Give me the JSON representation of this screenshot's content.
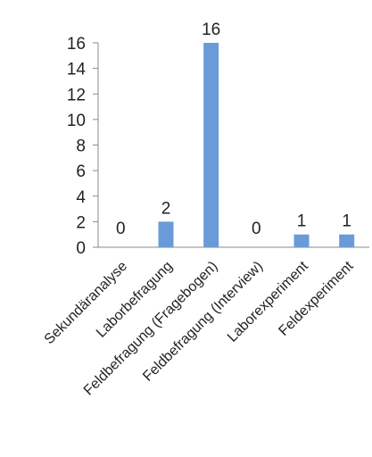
{
  "chart_data": {
    "type": "bar",
    "categories": [
      "Sekundäranalyse",
      "Laborbefragung",
      "Feldbefragung (Fragebogen)",
      "Feldbefragung (Interview)",
      "Laborexperiment",
      "Feldexperiment"
    ],
    "values": [
      0,
      2,
      16,
      0,
      1,
      1
    ],
    "data_labels": [
      "0",
      "2",
      "16",
      "0",
      "1",
      "1"
    ],
    "yticks": [
      "0",
      "2",
      "4",
      "6",
      "8",
      "10",
      "12",
      "14",
      "16"
    ],
    "ylim": [
      0,
      16
    ],
    "grid": false,
    "legend": "none",
    "bar_color": "#6a9bd8",
    "axis_color": "#8a8a8a"
  }
}
